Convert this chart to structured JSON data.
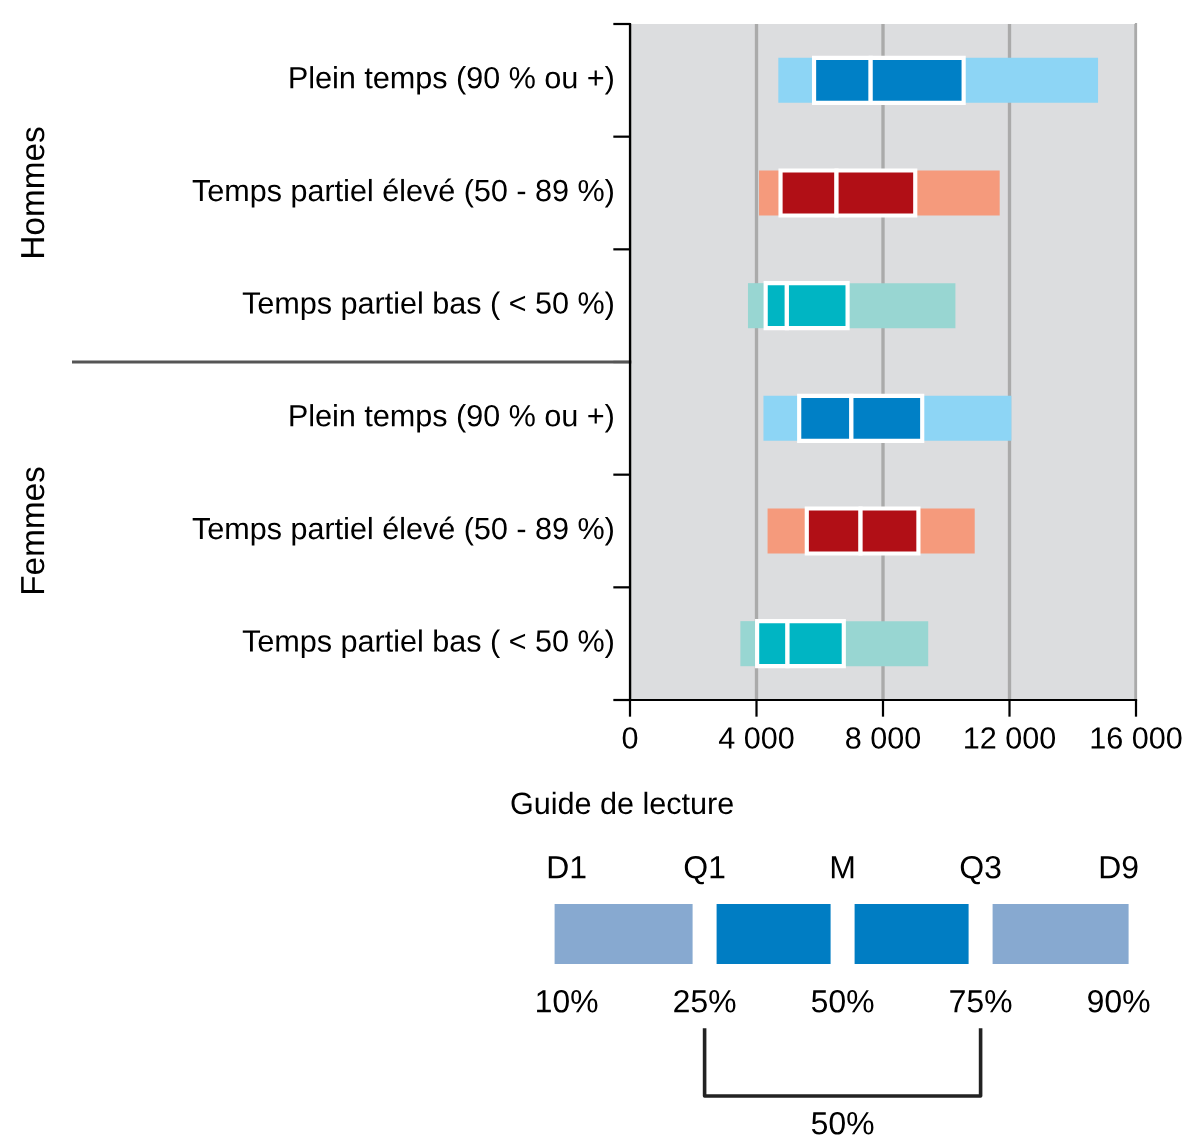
{
  "chart_data": [
    {
      "type": "box",
      "orientation": "horizontal",
      "categories": [
        "Plein temps (90 % ou +)",
        "Temps partiel élevé (50 - 89 %)",
        "Temps partiel bas ( < 50 %)",
        "Plein temps (90 % ou +)",
        "Temps partiel élevé (50 - 89 %)",
        "Temps partiel bas ( < 50 %)"
      ],
      "boxes": [
        {
          "low": 4690,
          "q1": 5820,
          "median": 7610,
          "q3": 10550,
          "high": 14800
        },
        {
          "low": 4080,
          "q1": 4760,
          "median": 6530,
          "q3": 9020,
          "high": 11690
        },
        {
          "low": 3730,
          "q1": 4290,
          "median": 4960,
          "q3": 6880,
          "high": 10290
        },
        {
          "low": 4220,
          "q1": 5350,
          "median": 7000,
          "q3": 9240,
          "high": 12060
        },
        {
          "low": 4350,
          "q1": 5590,
          "median": 7290,
          "q3": 9120,
          "high": 10900
        },
        {
          "low": 3490,
          "q1": 4020,
          "median": 4980,
          "q3": 6760,
          "high": 9430
        }
      ],
      "colors": [
        [
          "#8dd5f5",
          "#0080c6"
        ],
        [
          "#f59a7c",
          "#b10f16"
        ],
        [
          "#98d6d2",
          "#00b5c3"
        ],
        [
          "#8dd5f5",
          "#0080c6"
        ],
        [
          "#f59a7c",
          "#b10f16"
        ],
        [
          "#98d6d2",
          "#00b5c3"
        ]
      ],
      "xlim": [
        0,
        16000
      ],
      "xticks": [
        0,
        {
          "value": 4000,
          "label": "4 000"
        },
        {
          "value": 8000,
          "label": "8 000"
        },
        {
          "value": 12000,
          "label": "12 000"
        },
        {
          "value": 16000,
          "label": "16 000"
        }
      ],
      "grid": "x",
      "annotations": [
        "Hommes",
        "Femmes"
      ]
    },
    {
      "type": "other",
      "title": "Guide de lecture",
      "categories": [
        "D1",
        "Q1",
        "M",
        "Q3",
        "D9"
      ],
      "colors": [
        "#87a9d0",
        "#007dc3",
        "#007dc3",
        "#87a9d0"
      ],
      "annotations": [
        "10%",
        "25%",
        "50%",
        "75%",
        "90%",
        "50%"
      ]
    }
  ]
}
